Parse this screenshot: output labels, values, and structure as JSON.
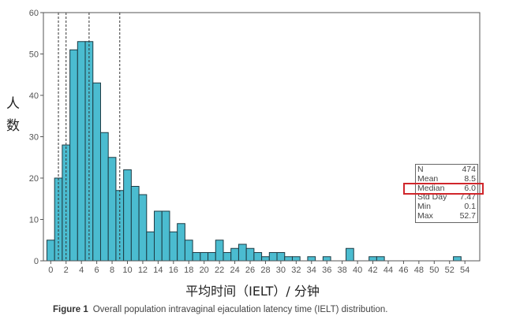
{
  "chart_data": {
    "type": "bar",
    "xlabel": "平均时间（IELT）/ 分钟",
    "ylabel": "人数",
    "caption_label": "Figure 1",
    "caption_text": "Overall population intravaginal ejaculation latency time (IELT) distribution.",
    "xlim": [
      0,
      54
    ],
    "ylim": [
      0,
      60
    ],
    "x_ticks": [
      0,
      2,
      4,
      6,
      8,
      10,
      12,
      14,
      16,
      18,
      20,
      22,
      24,
      26,
      28,
      30,
      32,
      34,
      36,
      38,
      40,
      42,
      44,
      46,
      48,
      50,
      52,
      54
    ],
    "y_ticks": [
      0,
      10,
      20,
      30,
      40,
      50,
      60
    ],
    "bin_width": 1,
    "bins": [
      0,
      1,
      2,
      3,
      4,
      5,
      6,
      7,
      8,
      9,
      10,
      11,
      12,
      13,
      14,
      15,
      16,
      17,
      18,
      19,
      20,
      21,
      22,
      23,
      24,
      25,
      26,
      27,
      28,
      29,
      30,
      31,
      32,
      33,
      34,
      35,
      36,
      37,
      38,
      39,
      40,
      41,
      42,
      43,
      44,
      45,
      46,
      47,
      48,
      49,
      50,
      51,
      52,
      53
    ],
    "values": [
      5,
      20,
      28,
      51,
      53,
      53,
      43,
      31,
      25,
      17,
      22,
      18,
      16,
      7,
      12,
      12,
      7,
      9,
      5,
      2,
      2,
      2,
      5,
      2,
      3,
      4,
      3,
      2,
      1,
      2,
      2,
      1,
      1,
      0,
      1,
      0,
      1,
      0,
      0,
      3,
      0,
      0,
      1,
      1,
      0,
      0,
      0,
      0,
      0,
      0,
      0,
      0,
      0,
      1
    ],
    "reference_lines": [
      1,
      2,
      5,
      9
    ],
    "bar_color": "#4bbcd0",
    "highlight_color": "#d0262b",
    "stats": [
      {
        "label": "N",
        "value": "474"
      },
      {
        "label": "Mean",
        "value": "8.5"
      },
      {
        "label": "Median",
        "value": "6.0"
      },
      {
        "label": "Std Day",
        "value": "7.47"
      },
      {
        "label": "Min",
        "value": "0.1"
      },
      {
        "label": "Max",
        "value": "52.7"
      }
    ],
    "highlighted_stat": "Median"
  }
}
